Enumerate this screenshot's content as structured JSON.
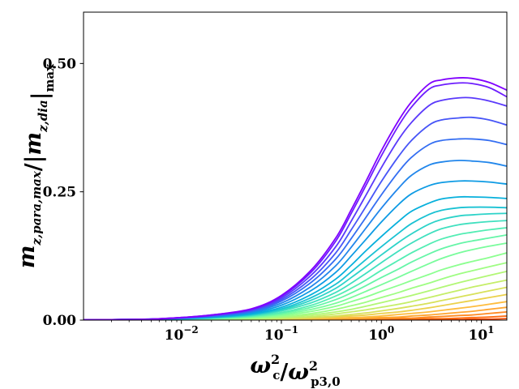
{
  "chart_data": {
    "type": "line",
    "title": "",
    "xlabel": "ω_c² / ω_p3,0²",
    "ylabel": "m_z,para,max / |m_z,dia|_max",
    "x_scale": "log",
    "xlim": [
      0.00105,
      18.0
    ],
    "ylim": [
      0.0,
      0.6
    ],
    "x_ticks": [
      {
        "value": 0.01,
        "base": "10",
        "exp": "−2"
      },
      {
        "value": 0.1,
        "base": "10",
        "exp": "−1"
      },
      {
        "value": 1,
        "base": "10",
        "exp": "0"
      },
      {
        "value": 10,
        "base": "10",
        "exp": "1"
      }
    ],
    "y_ticks": [
      {
        "value": 0.0,
        "label": "0.00"
      },
      {
        "value": 0.25,
        "label": "0.25"
      },
      {
        "value": 0.5,
        "label": "0.50"
      }
    ],
    "grid": false,
    "legend": "none",
    "colormap": "rainbow",
    "x": [
      0.00105,
      0.002,
      0.005,
      0.01,
      0.02,
      0.05,
      0.1,
      0.2,
      0.35,
      0.5,
      0.7,
      1.0,
      1.5,
      2.0,
      3.0,
      4.0,
      6.0,
      8.0,
      12.0,
      18.0
    ],
    "series": [
      {
        "color": "#8000ff",
        "values": [
          0.0006,
          0.001,
          0.002,
          0.005,
          0.01,
          0.022,
          0.048,
          0.098,
          0.16,
          0.215,
          0.27,
          0.33,
          0.39,
          0.425,
          0.46,
          0.468,
          0.472,
          0.471,
          0.463,
          0.448
        ]
      },
      {
        "color": "#6d1dfe",
        "values": [
          0.0006,
          0.001,
          0.002,
          0.005,
          0.01,
          0.021,
          0.046,
          0.094,
          0.154,
          0.208,
          0.262,
          0.32,
          0.38,
          0.415,
          0.45,
          0.458,
          0.462,
          0.461,
          0.453,
          0.435
        ]
      },
      {
        "color": "#5a39fb",
        "values": [
          0.0005,
          0.001,
          0.002,
          0.005,
          0.009,
          0.02,
          0.043,
          0.088,
          0.143,
          0.193,
          0.243,
          0.297,
          0.353,
          0.385,
          0.418,
          0.428,
          0.433,
          0.433,
          0.427,
          0.417
        ]
      },
      {
        "color": "#4755f7",
        "values": [
          0.0005,
          0.001,
          0.002,
          0.004,
          0.009,
          0.019,
          0.04,
          0.081,
          0.131,
          0.176,
          0.221,
          0.27,
          0.32,
          0.35,
          0.38,
          0.39,
          0.394,
          0.395,
          0.39,
          0.38
        ]
      },
      {
        "color": "#346ef2",
        "values": [
          0.0005,
          0.001,
          0.002,
          0.004,
          0.008,
          0.017,
          0.037,
          0.074,
          0.119,
          0.159,
          0.2,
          0.244,
          0.29,
          0.317,
          0.342,
          0.35,
          0.353,
          0.353,
          0.35,
          0.342
        ]
      },
      {
        "color": "#2186eb",
        "values": [
          0.0004,
          0.001,
          0.002,
          0.004,
          0.007,
          0.016,
          0.033,
          0.066,
          0.106,
          0.142,
          0.179,
          0.218,
          0.258,
          0.282,
          0.302,
          0.308,
          0.311,
          0.31,
          0.307,
          0.3
        ]
      },
      {
        "color": "#0e9be4",
        "values": [
          0.0004,
          0.001,
          0.002,
          0.003,
          0.006,
          0.014,
          0.029,
          0.058,
          0.093,
          0.125,
          0.157,
          0.191,
          0.226,
          0.246,
          0.262,
          0.268,
          0.271,
          0.271,
          0.269,
          0.265
        ]
      },
      {
        "color": "#07b0dc",
        "values": [
          0.0004,
          0.001,
          0.001,
          0.003,
          0.006,
          0.012,
          0.025,
          0.05,
          0.08,
          0.107,
          0.135,
          0.163,
          0.193,
          0.212,
          0.228,
          0.236,
          0.24,
          0.24,
          0.239,
          0.237
        ]
      },
      {
        "color": "#1ac2d3",
        "values": [
          0.0003,
          0.001,
          0.001,
          0.003,
          0.005,
          0.011,
          0.022,
          0.044,
          0.07,
          0.094,
          0.118,
          0.143,
          0.17,
          0.188,
          0.206,
          0.214,
          0.219,
          0.22,
          0.22,
          0.219
        ]
      },
      {
        "color": "#2dd3c9",
        "values": [
          0.0003,
          0.0005,
          0.001,
          0.002,
          0.005,
          0.01,
          0.02,
          0.039,
          0.062,
          0.083,
          0.104,
          0.127,
          0.152,
          0.168,
          0.187,
          0.196,
          0.203,
          0.205,
          0.207,
          0.208
        ]
      },
      {
        "color": "#40e0bf",
        "values": [
          0.0003,
          0.0005,
          0.001,
          0.002,
          0.004,
          0.009,
          0.018,
          0.034,
          0.054,
          0.072,
          0.091,
          0.112,
          0.135,
          0.15,
          0.168,
          0.178,
          0.186,
          0.189,
          0.192,
          0.194
        ]
      },
      {
        "color": "#53edb4",
        "values": [
          0.0002,
          0.0004,
          0.001,
          0.002,
          0.004,
          0.008,
          0.015,
          0.029,
          0.047,
          0.062,
          0.078,
          0.097,
          0.117,
          0.131,
          0.148,
          0.158,
          0.167,
          0.171,
          0.176,
          0.18
        ]
      },
      {
        "color": "#66f5a8",
        "values": [
          0.0002,
          0.0004,
          0.001,
          0.002,
          0.003,
          0.007,
          0.013,
          0.025,
          0.04,
          0.053,
          0.067,
          0.083,
          0.1,
          0.113,
          0.129,
          0.139,
          0.149,
          0.154,
          0.16,
          0.166
        ]
      },
      {
        "color": "#79fc9c",
        "values": [
          0.0002,
          0.0003,
          0.001,
          0.001,
          0.003,
          0.006,
          0.011,
          0.021,
          0.033,
          0.044,
          0.056,
          0.069,
          0.084,
          0.095,
          0.11,
          0.12,
          0.131,
          0.137,
          0.144,
          0.15
        ]
      },
      {
        "color": "#8cff90",
        "values": [
          0.0002,
          0.0003,
          0.0005,
          0.001,
          0.002,
          0.005,
          0.009,
          0.017,
          0.027,
          0.036,
          0.045,
          0.056,
          0.068,
          0.077,
          0.089,
          0.098,
          0.108,
          0.114,
          0.122,
          0.131
        ]
      },
      {
        "color": "#9ffd83",
        "values": [
          0.0001,
          0.0002,
          0.0004,
          0.001,
          0.002,
          0.004,
          0.007,
          0.013,
          0.021,
          0.028,
          0.035,
          0.044,
          0.054,
          0.062,
          0.072,
          0.08,
          0.09,
          0.096,
          0.104,
          0.112
        ]
      },
      {
        "color": "#b2f775",
        "values": [
          0.0001,
          0.0002,
          0.0003,
          0.001,
          0.001,
          0.003,
          0.005,
          0.01,
          0.016,
          0.021,
          0.027,
          0.034,
          0.042,
          0.048,
          0.057,
          0.064,
          0.073,
          0.079,
          0.087,
          0.095
        ]
      },
      {
        "color": "#c5ee68",
        "values": [
          0.0001,
          0.0001,
          0.0003,
          0.0005,
          0.001,
          0.002,
          0.004,
          0.007,
          0.012,
          0.016,
          0.02,
          0.025,
          0.031,
          0.036,
          0.044,
          0.05,
          0.058,
          0.064,
          0.071,
          0.078
        ]
      },
      {
        "color": "#d8e15a",
        "values": [
          0.0001,
          0.0001,
          0.0002,
          0.0004,
          0.001,
          0.001,
          0.003,
          0.005,
          0.008,
          0.011,
          0.014,
          0.018,
          0.023,
          0.027,
          0.033,
          0.038,
          0.045,
          0.05,
          0.057,
          0.064
        ]
      },
      {
        "color": "#ebd14c",
        "values": [
          0.0,
          0.0001,
          0.0001,
          0.0003,
          0.0005,
          0.001,
          0.002,
          0.004,
          0.006,
          0.008,
          0.01,
          0.013,
          0.016,
          0.019,
          0.024,
          0.028,
          0.034,
          0.038,
          0.044,
          0.05
        ]
      },
      {
        "color": "#febc3e",
        "values": [
          0.0,
          0.0,
          0.0001,
          0.0002,
          0.0003,
          0.001,
          0.001,
          0.002,
          0.004,
          0.005,
          0.006,
          0.008,
          0.011,
          0.013,
          0.016,
          0.019,
          0.023,
          0.026,
          0.031,
          0.036
        ]
      },
      {
        "color": "#ffa530",
        "values": [
          0.0,
          0.0,
          0.0,
          0.0001,
          0.0002,
          0.0004,
          0.001,
          0.001,
          0.002,
          0.003,
          0.004,
          0.005,
          0.006,
          0.008,
          0.01,
          0.012,
          0.015,
          0.017,
          0.021,
          0.025
        ]
      },
      {
        "color": "#ff8a22",
        "values": [
          0.0,
          0.0,
          0.0,
          0.0001,
          0.0001,
          0.0002,
          0.0004,
          0.001,
          0.001,
          0.002,
          0.002,
          0.003,
          0.004,
          0.004,
          0.006,
          0.007,
          0.009,
          0.01,
          0.013,
          0.016
        ]
      },
      {
        "color": "#ff6d13",
        "values": [
          0.0,
          0.0,
          0.0,
          0.0,
          0.0,
          0.0001,
          0.0002,
          0.0003,
          0.001,
          0.001,
          0.001,
          0.001,
          0.002,
          0.002,
          0.003,
          0.003,
          0.004,
          0.005,
          0.006,
          0.008
        ]
      },
      {
        "color": "#ff4d05",
        "values": [
          0.0,
          0.0,
          0.0,
          0.0,
          0.0,
          0.0,
          0.0001,
          0.0001,
          0.0002,
          0.0002,
          0.0003,
          0.0004,
          0.001,
          0.001,
          0.001,
          0.001,
          0.001,
          0.002,
          0.002,
          0.003
        ]
      }
    ]
  }
}
